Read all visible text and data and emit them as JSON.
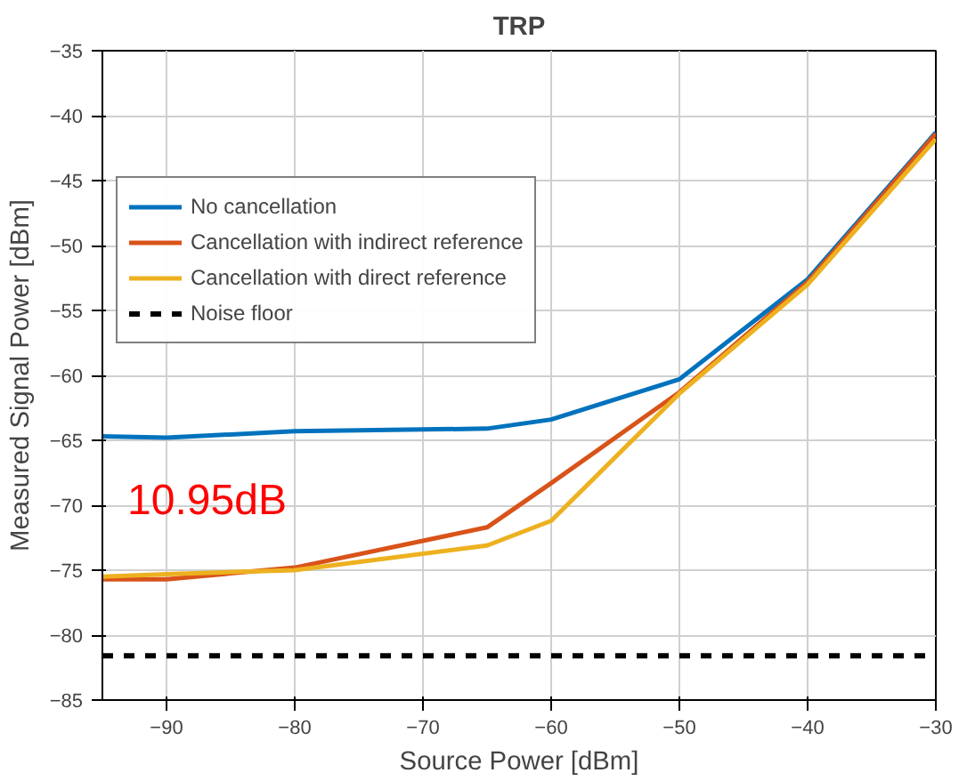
{
  "chart_data": {
    "type": "line",
    "title": "TRP",
    "xlabel": "Source Power [dBm]",
    "ylabel": "Measured Signal Power [dBm]",
    "x": [
      -95,
      -90,
      -80,
      -65,
      -60,
      -50,
      -40,
      -30
    ],
    "series": [
      {
        "name": "No cancellation",
        "color": "#0072bd",
        "values": [
          -64.7,
          -64.8,
          -64.3,
          -64.1,
          -63.4,
          -60.3,
          -52.6,
          -41.3
        ]
      },
      {
        "name": "Cancellation with indirect reference",
        "color": "#d95319",
        "values": [
          -75.7,
          -75.7,
          -74.8,
          -71.7,
          -68.3,
          -61.3,
          -52.8,
          -41.4
        ]
      },
      {
        "name": "Cancellation with direct reference",
        "color": "#edb120",
        "values": [
          -75.5,
          -75.3,
          -75.0,
          -73.1,
          -71.2,
          -61.4,
          -53.0,
          -41.8
        ]
      }
    ],
    "ref_lines": [
      {
        "axis": "y",
        "value": -81.6,
        "label": "Noise floor",
        "color": "#000000",
        "line_style": "dashed"
      }
    ],
    "annotations": [
      "10.95dB"
    ],
    "xlim": [
      -95,
      -30
    ],
    "ylim": [
      -85,
      -35
    ],
    "xticks": [
      -90,
      -80,
      -70,
      -60,
      -50,
      -40,
      -30
    ],
    "yticks": [
      -85,
      -80,
      -75,
      -70,
      -65,
      -60,
      -55,
      -50,
      -45,
      -40,
      -35
    ],
    "grid": true,
    "legend": "left",
    "line_style": "solid",
    "marker": "none"
  }
}
